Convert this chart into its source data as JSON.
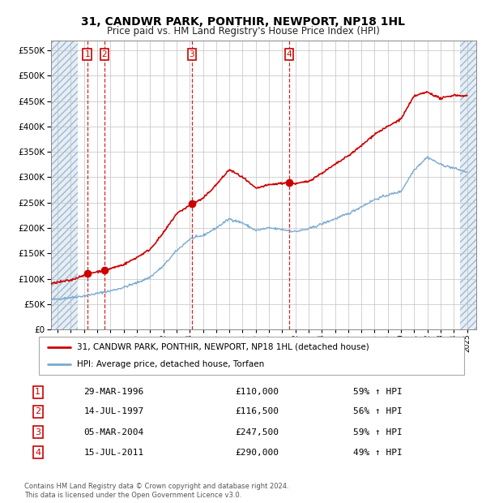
{
  "title": "31, CANDWR PARK, PONTHIR, NEWPORT, NP18 1HL",
  "subtitle": "Price paid vs. HM Land Registry's House Price Index (HPI)",
  "legend_line1": "31, CANDWR PARK, PONTHIR, NEWPORT, NP18 1HL (detached house)",
  "legend_line2": "HPI: Average price, detached house, Torfaen",
  "footer_line1": "Contains HM Land Registry data © Crown copyright and database right 2024.",
  "footer_line2": "This data is licensed under the Open Government Licence v3.0.",
  "sale_points": [
    {
      "num": 1,
      "date_str": "29-MAR-1996",
      "date_dec": 1996.24,
      "price": 110000,
      "label": "59% ↑ HPI"
    },
    {
      "num": 2,
      "date_str": "14-JUL-1997",
      "date_dec": 1997.54,
      "price": 116500,
      "label": "56% ↑ HPI"
    },
    {
      "num": 3,
      "date_str": "05-MAR-2004",
      "date_dec": 2004.17,
      "price": 247500,
      "label": "59% ↑ HPI"
    },
    {
      "num": 4,
      "date_str": "15-JUL-2011",
      "date_dec": 2011.54,
      "price": 290000,
      "label": "49% ↑ HPI"
    }
  ],
  "price_line_color": "#cc0000",
  "hpi_line_color": "#7aaad0",
  "dashed_vline_color": "#cc0000",
  "hatch_color": "#c8d8e8",
  "grid_color": "#c0c0c0",
  "ylim": [
    0,
    570000
  ],
  "yticks": [
    0,
    50000,
    100000,
    150000,
    200000,
    250000,
    300000,
    350000,
    400000,
    450000,
    500000,
    550000
  ],
  "xlim_start": 1993.5,
  "xlim_end": 2025.7,
  "hatch_left_end": 1995.5,
  "hatch_right_start": 2024.5,
  "xtick_years": [
    1994,
    1995,
    1996,
    1997,
    1998,
    1999,
    2000,
    2001,
    2002,
    2003,
    2004,
    2005,
    2006,
    2007,
    2008,
    2009,
    2010,
    2011,
    2012,
    2013,
    2014,
    2015,
    2016,
    2017,
    2018,
    2019,
    2020,
    2021,
    2022,
    2023,
    2024,
    2025
  ],
  "hpi_anchors": [
    [
      1993.5,
      58000
    ],
    [
      1994,
      60000
    ],
    [
      1995,
      63000
    ],
    [
      1996,
      66000
    ],
    [
      1997,
      71000
    ],
    [
      1998,
      76000
    ],
    [
      1999,
      83000
    ],
    [
      2000,
      92000
    ],
    [
      2001,
      103000
    ],
    [
      2002,
      125000
    ],
    [
      2003,
      155000
    ],
    [
      2004,
      178000
    ],
    [
      2005,
      185000
    ],
    [
      2006,
      200000
    ],
    [
      2007,
      218000
    ],
    [
      2008,
      210000
    ],
    [
      2009,
      195000
    ],
    [
      2010,
      200000
    ],
    [
      2011,
      197000
    ],
    [
      2012,
      193000
    ],
    [
      2013,
      198000
    ],
    [
      2014,
      208000
    ],
    [
      2015,
      218000
    ],
    [
      2016,
      228000
    ],
    [
      2017,
      242000
    ],
    [
      2018,
      256000
    ],
    [
      2019,
      265000
    ],
    [
      2020,
      272000
    ],
    [
      2021,
      315000
    ],
    [
      2022,
      340000
    ],
    [
      2023,
      325000
    ],
    [
      2024,
      318000
    ],
    [
      2025,
      310000
    ]
  ],
  "price_anchors": [
    [
      1993.5,
      90000
    ],
    [
      1994,
      93000
    ],
    [
      1995,
      97000
    ],
    [
      1996.24,
      110000
    ],
    [
      1997.54,
      116500
    ],
    [
      1998,
      120000
    ],
    [
      1999,
      128000
    ],
    [
      2000,
      142000
    ],
    [
      2001,
      158000
    ],
    [
      2002,
      190000
    ],
    [
      2003,
      228000
    ],
    [
      2004.17,
      247500
    ],
    [
      2005,
      258000
    ],
    [
      2006,
      285000
    ],
    [
      2007,
      315000
    ],
    [
      2008,
      300000
    ],
    [
      2009,
      278000
    ],
    [
      2010,
      285000
    ],
    [
      2011.54,
      290000
    ],
    [
      2012,
      287000
    ],
    [
      2013,
      292000
    ],
    [
      2014,
      308000
    ],
    [
      2015,
      325000
    ],
    [
      2016,
      342000
    ],
    [
      2017,
      362000
    ],
    [
      2018,
      385000
    ],
    [
      2019,
      400000
    ],
    [
      2020,
      415000
    ],
    [
      2021,
      460000
    ],
    [
      2022,
      468000
    ],
    [
      2023,
      455000
    ],
    [
      2024,
      462000
    ],
    [
      2025,
      460000
    ]
  ]
}
